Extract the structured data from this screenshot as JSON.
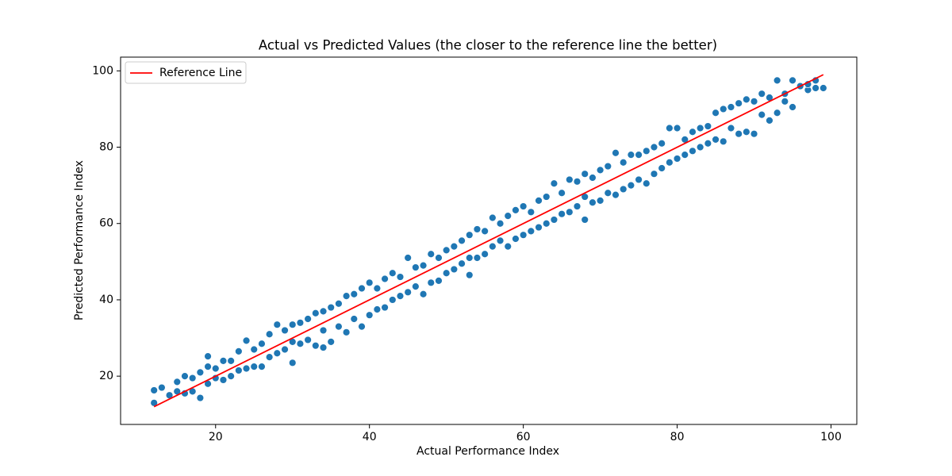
{
  "chart_data": {
    "type": "scatter",
    "title": "Actual vs Predicted Values (the closer to the reference line the better)",
    "x_label": "Actual Performance Index",
    "y_label": "Predicted Performance Index",
    "xlim": [
      7.65,
      103.35
    ],
    "xticks": [
      20,
      40,
      60,
      80,
      100
    ],
    "ylim": [
      7.35,
      103.6
    ],
    "yticks": [
      20,
      40,
      60,
      80,
      100
    ],
    "legend": "upper left",
    "series": [
      {
        "color": "#1f77b4",
        "type": "scatter",
        "x": [
          12,
          12,
          13,
          14,
          15,
          15,
          16,
          16,
          17,
          17,
          18,
          18,
          19,
          19,
          19,
          20,
          20,
          21,
          21,
          22,
          22,
          23,
          23,
          24,
          24,
          25,
          25,
          26,
          26,
          27,
          27,
          28,
          28,
          29,
          29,
          30,
          30,
          30,
          31,
          31,
          32,
          32,
          33,
          33,
          34,
          34,
          34,
          35,
          35,
          36,
          36,
          37,
          37,
          38,
          38,
          39,
          39,
          40,
          40,
          41,
          41,
          42,
          42,
          43,
          43,
          44,
          44,
          45,
          45,
          46,
          46,
          47,
          47,
          48,
          48,
          49,
          49,
          50,
          50,
          51,
          51,
          52,
          52,
          53,
          53,
          53,
          54,
          54,
          55,
          55,
          56,
          56,
          57,
          57,
          58,
          58,
          59,
          59,
          60,
          60,
          61,
          61,
          62,
          62,
          63,
          63,
          64,
          64,
          65,
          65,
          66,
          66,
          67,
          67,
          68,
          68,
          68,
          69,
          69,
          70,
          70,
          71,
          71,
          72,
          72,
          73,
          73,
          74,
          74,
          75,
          75,
          76,
          76,
          77,
          77,
          78,
          78,
          79,
          79,
          80,
          80,
          81,
          81,
          82,
          82,
          83,
          83,
          84,
          84,
          85,
          85,
          86,
          86,
          87,
          87,
          88,
          88,
          89,
          89,
          90,
          90,
          91,
          91,
          92,
          92,
          93,
          93,
          94,
          94,
          95,
          95,
          96,
          97,
          97,
          98,
          98,
          99
        ],
        "values": [
          13,
          16.3,
          17,
          15,
          16,
          18.5,
          15.5,
          20,
          16,
          19.5,
          14.3,
          21,
          18,
          22.5,
          25.2,
          19.5,
          22,
          19,
          24,
          20,
          24,
          21.5,
          26.5,
          22,
          29.3,
          22.5,
          27,
          22.5,
          28.5,
          25,
          31,
          26,
          33.5,
          27,
          32,
          23.5,
          29,
          33.5,
          28.5,
          34,
          29.5,
          35,
          28,
          36.5,
          27.5,
          32,
          37,
          29,
          38,
          33,
          39,
          31.5,
          41,
          35,
          41.5,
          33,
          43,
          36,
          44.5,
          37.5,
          43,
          38,
          45.5,
          40,
          47,
          41,
          46,
          42,
          51,
          43.5,
          48.5,
          41.5,
          49,
          44.5,
          52,
          45,
          51,
          47,
          53,
          48,
          54,
          49.5,
          55.5,
          46.5,
          51,
          57,
          51,
          58.5,
          52,
          58,
          54,
          61.5,
          55.5,
          60,
          54,
          62,
          56,
          63.5,
          57,
          64.5,
          58,
          63,
          59,
          66,
          60,
          67,
          61,
          70.5,
          62.5,
          68,
          63,
          71.5,
          64.5,
          71,
          61,
          67,
          73,
          65.5,
          72,
          66,
          74,
          68,
          75,
          67.5,
          78.5,
          69,
          76,
          70,
          78,
          71.5,
          78,
          70.5,
          79,
          73,
          80,
          74.5,
          81,
          76,
          85,
          77,
          85,
          78,
          82,
          79,
          84,
          80,
          85,
          81,
          85.5,
          82,
          89,
          81.5,
          90,
          85,
          90.5,
          83.5,
          91.5,
          84,
          92.5,
          83.5,
          92,
          88.5,
          94,
          87,
          93,
          89,
          97.5,
          92,
          94,
          90.5,
          97.5,
          96,
          95,
          96.5,
          95.5,
          97.5,
          95.5
        ]
      },
      {
        "name": "Reference Line",
        "color": "#ff0000",
        "type": "line",
        "x": [
          12,
          99
        ],
        "values": [
          12,
          99
        ]
      }
    ]
  }
}
